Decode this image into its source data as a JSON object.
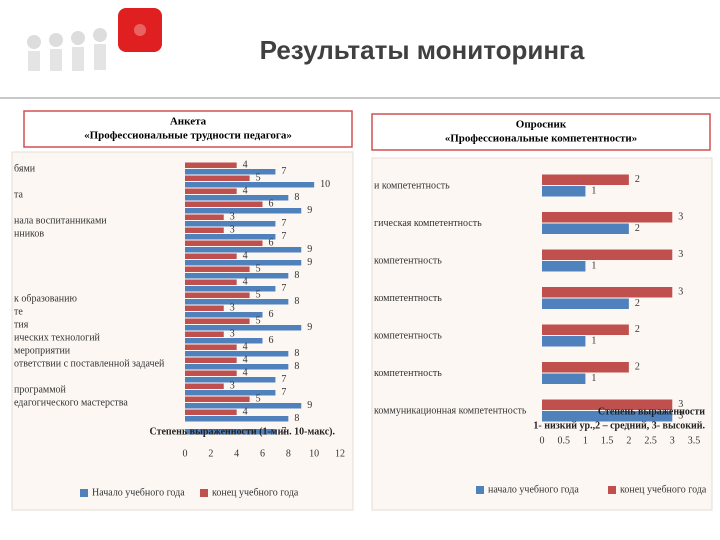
{
  "header": {
    "title": "Результаты мониторинга"
  },
  "panels": [
    {
      "lines": [
        "Анкета",
        "«Профессиональные трудности педагога»"
      ]
    },
    {
      "lines": [
        "Опросник",
        "«Профессиональные компетентности»"
      ]
    }
  ],
  "chart_data": [
    {
      "type": "bar",
      "orientation": "horizontal",
      "categories": [
        "бями",
        null,
        "та",
        null,
        "нала воспитанниками",
        "нников",
        null,
        null,
        null,
        null,
        "к образованию",
        "те",
        "тия",
        "ических технологий",
        "мероприятии",
        "ответствии с поставленной задачей",
        null,
        "программой",
        "едагогического мастерства",
        null,
        null
      ],
      "series": [
        {
          "name": "Начало учебного года",
          "color": "#4f81bd",
          "values": [
            7,
            10,
            8,
            9,
            7,
            7,
            9,
            9,
            8,
            7,
            8,
            6,
            9,
            6,
            8,
            8,
            7,
            7,
            9,
            8,
            7
          ]
        },
        {
          "name": "конец учебного года",
          "color": "#c0504d",
          "values": [
            4,
            5,
            4,
            6,
            3,
            3,
            6,
            4,
            5,
            4,
            5,
            3,
            5,
            3,
            4,
            4,
            4,
            3,
            5,
            4,
            null
          ]
        }
      ],
      "xlim": [
        0,
        12
      ],
      "xticks": [
        0,
        2,
        4,
        6,
        8,
        10,
        12
      ],
      "annotation": [
        "Степень выраженности (1-мин. 10-макс)."
      ]
    },
    {
      "type": "bar",
      "orientation": "horizontal",
      "categories": [
        "и компетентность",
        "гическая компетентность",
        "компетентность",
        "компетентность",
        "компетентность",
        "компетентность",
        "коммуникационная компетентность"
      ],
      "series": [
        {
          "name": "начало учебного года",
          "color": "#4f81bd",
          "values": [
            1,
            2,
            1,
            2,
            1,
            1,
            3
          ]
        },
        {
          "name": "конец учебного года",
          "color": "#c0504d",
          "values": [
            2,
            3,
            3,
            3,
            2,
            2,
            3
          ]
        }
      ],
      "xlim": [
        0,
        3.5
      ],
      "xticks": [
        0,
        0.5,
        1,
        1.5,
        2,
        2.5,
        3,
        3.5
      ],
      "annotation": [
        "Степень выраженности",
        "1- низкий ур.,2 – средний, 3- высокий."
      ]
    }
  ]
}
